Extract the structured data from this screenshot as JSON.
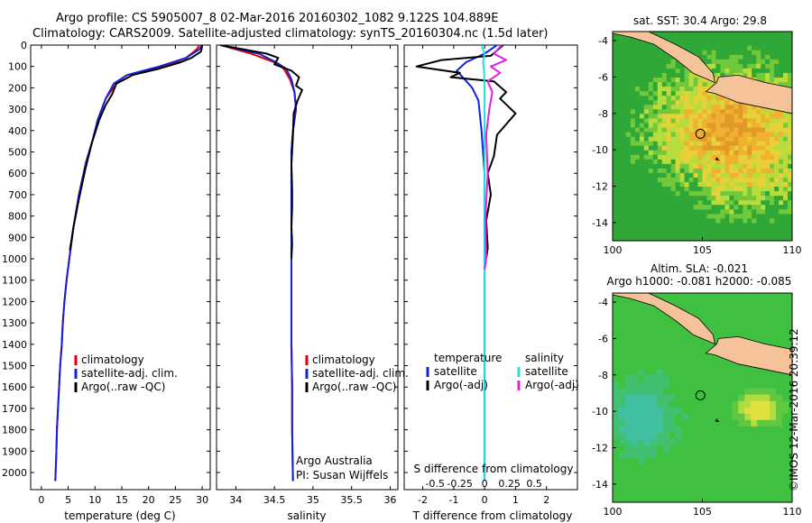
{
  "header": {
    "line1": "Argo profile: CS 5905007_8 02-Mar-2016 20160302_1082 9.122S 104.889E",
    "line2": "Climatology: CARS2009. Satellite-adjusted climatology: synTS_20160304.nc (1.5d later)"
  },
  "stamp": "©IMOS 12-Mar-2016 20:39:12",
  "colors": {
    "climatology": "#e00000",
    "satellite": "#1020e0",
    "argo": "#000000",
    "sal_satellite": "#20e0e0",
    "sal_argo": "#e020e0",
    "land": "#f6c29a"
  },
  "chart_data": [
    {
      "type": "line",
      "name": "temperature-profile",
      "xlabel": "temperature (deg C)",
      "ylabel": "",
      "xlim": [
        -2,
        31.5
      ],
      "ylim": [
        2080,
        0
      ],
      "xticks": [
        "0",
        "5",
        "10",
        "15",
        "20",
        "25",
        "30"
      ],
      "yticks": [
        "0",
        "100",
        "200",
        "300",
        "400",
        "500",
        "600",
        "700",
        "800",
        "900",
        "1000",
        "1100",
        "1200",
        "1300",
        "1400",
        "1500",
        "1600",
        "1700",
        "1800",
        "1900",
        "2000"
      ],
      "legend": [
        "climatology",
        "satellite-adj. clim.",
        "Argo(..raw -QC)"
      ],
      "series": [
        {
          "name": "climatology",
          "color": "#e00000",
          "x": [
            29.5,
            29,
            27,
            23,
            17,
            14,
            12,
            10.5,
            9.5,
            8.3,
            7,
            6,
            5.2,
            4.7,
            4.3,
            4.0,
            3.8,
            3.5,
            3.3,
            3.1,
            2.9,
            2.8,
            2.6
          ],
          "y": [
            0,
            20,
            60,
            100,
            140,
            180,
            250,
            350,
            450,
            550,
            700,
            850,
            1000,
            1100,
            1200,
            1300,
            1400,
            1500,
            1600,
            1700,
            1800,
            1900,
            2040
          ]
        },
        {
          "name": "satellite-adj. clim.",
          "color": "#1020e0",
          "x": [
            30,
            29.5,
            27,
            22,
            16,
            13.5,
            12,
            10.5,
            9.5,
            8.3,
            7,
            6,
            5.2,
            4.7,
            4.3,
            4.0,
            3.8,
            3.5,
            3.3,
            3.1,
            2.9,
            2.8,
            2.6
          ],
          "y": [
            0,
            20,
            60,
            100,
            140,
            180,
            250,
            350,
            450,
            550,
            700,
            850,
            1000,
            1100,
            1200,
            1300,
            1400,
            1500,
            1600,
            1700,
            1800,
            1900,
            2040
          ]
        },
        {
          "name": "Argo(..raw -QC)",
          "color": "#000000",
          "x": [
            30,
            29.8,
            28,
            26,
            22,
            17,
            14,
            13.2,
            12,
            10.8,
            9.4,
            8.2,
            7.0,
            6.0,
            5.3
          ],
          "y": [
            0,
            30,
            60,
            80,
            110,
            140,
            180,
            230,
            280,
            350,
            460,
            580,
            720,
            850,
            960
          ]
        }
      ]
    },
    {
      "type": "line",
      "name": "salinity-profile",
      "xlabel": "salinity",
      "xlim": [
        33.75,
        36.1
      ],
      "ylim": [
        2080,
        0
      ],
      "xticks": [
        "34",
        "34.5",
        "35",
        "35.5",
        "36"
      ],
      "legend": [
        "climatology",
        "satellite-adj. clim.",
        "Argo(..raw -QC)"
      ],
      "annotation": [
        "Argo Australia",
        "PI: Susan Wijffels"
      ],
      "series": [
        {
          "name": "climatology",
          "color": "#e00000",
          "x": [
            33.8,
            34.2,
            34.5,
            34.62,
            34.7,
            34.76,
            34.78,
            34.74,
            34.72,
            34.72,
            34.72,
            34.72,
            34.72,
            34.72,
            34.73,
            34.73,
            34.74
          ],
          "y": [
            0,
            40,
            80,
            110,
            160,
            220,
            300,
            400,
            500,
            600,
            800,
            1000,
            1200,
            1400,
            1600,
            1800,
            2040
          ]
        },
        {
          "name": "satellite-adj. clim.",
          "color": "#1020e0",
          "x": [
            33.8,
            34.3,
            34.52,
            34.65,
            34.72,
            34.76,
            34.78,
            34.74,
            34.72,
            34.72,
            34.72,
            34.72,
            34.72,
            34.72,
            34.73,
            34.73,
            34.74
          ],
          "y": [
            0,
            40,
            80,
            110,
            160,
            220,
            300,
            400,
            500,
            600,
            800,
            1000,
            1200,
            1400,
            1600,
            1800,
            2040
          ]
        },
        {
          "name": "Argo(..raw -QC)",
          "color": "#000000",
          "x": [
            33.8,
            34.4,
            34.55,
            34.5,
            34.72,
            34.82,
            34.78,
            34.86,
            34.8,
            34.75,
            34.74,
            34.72,
            34.73,
            34.73,
            34.72,
            34.73,
            34.72
          ],
          "y": [
            0,
            40,
            60,
            90,
            120,
            150,
            190,
            210,
            260,
            320,
            420,
            560,
            680,
            760,
            850,
            930,
            1000
          ]
        }
      ]
    },
    {
      "type": "line",
      "name": "difference-from-climatology",
      "xlabel": "T difference from climatology",
      "toplabel": "S difference from climatology",
      "xlim": [
        -2.6,
        3.0
      ],
      "ylim": [
        2080,
        0
      ],
      "xticks": [
        "-2",
        "-1",
        "0",
        "1",
        "2"
      ],
      "sticks": [
        "-0.5",
        "-0.25",
        "0",
        "0.25",
        "0.5"
      ],
      "legend_temperature": [
        "temperature",
        "satellite",
        "Argo(-adj)"
      ],
      "legend_salinity": [
        "salinity",
        "satellite",
        "Argo(-adj)"
      ],
      "series": [
        {
          "name": "T satellite",
          "color": "#1020e0",
          "x": [
            0.4,
            0,
            -0.6,
            -0.9,
            -0.4,
            -0.2,
            -0.15,
            -0.1,
            -0.05,
            0,
            0,
            0,
            0,
            0
          ],
          "y": [
            0,
            40,
            80,
            120,
            200,
            260,
            330,
            400,
            500,
            600,
            800,
            1000,
            1500,
            2040
          ]
        },
        {
          "name": "T Argo(-adj)",
          "color": "#000000",
          "x": [
            0.6,
            0.2,
            -1.4,
            -2.2,
            -0.8,
            -1.1,
            0.3,
            0.7,
            0.5,
            1.0,
            0.4,
            0.3,
            0.1,
            0.2,
            0.05,
            0.1,
            0.05
          ],
          "y": [
            0,
            50,
            70,
            100,
            130,
            150,
            170,
            220,
            250,
            320,
            420,
            520,
            600,
            700,
            820,
            950,
            1000
          ]
        },
        {
          "name": "S satellite",
          "color": "#20e0e0",
          "x": [
            -0.1,
            0,
            -0.05,
            -0.02,
            0,
            0,
            0,
            0,
            0,
            0
          ],
          "y": [
            0,
            40,
            80,
            120,
            200,
            400,
            700,
            1000,
            1500,
            2040
          ]
        },
        {
          "name": "S Argo(-adj)",
          "color": "#e020e0",
          "x": [
            0.55,
            0.3,
            0.7,
            0.2,
            0.5,
            0.1,
            0.25,
            0.15,
            0.05,
            0.1,
            0.03,
            0.05,
            0
          ],
          "y": [
            0,
            40,
            70,
            100,
            130,
            170,
            220,
            300,
            420,
            600,
            800,
            1000,
            1050
          ]
        }
      ]
    },
    {
      "type": "heatmap",
      "name": "satellite-sst-map",
      "title": "sat. SST: 30.4  Argo: 29.8",
      "xlim": [
        100,
        110
      ],
      "ylim": [
        -15,
        -3.5
      ],
      "xticks": [
        "100",
        "105",
        "110"
      ],
      "yticks": [
        "-4",
        "-6",
        "-8",
        "-10",
        "-12",
        "-14"
      ],
      "marker": {
        "lon": 104.889,
        "lat": -9.122
      }
    },
    {
      "type": "heatmap",
      "name": "altimetry-sla-map",
      "title": "Altim. SLA: -0.021",
      "subtitle": "Argo h1000: -0.081 h2000: -0.085",
      "xlim": [
        100,
        110
      ],
      "ylim": [
        -15,
        -3.5
      ],
      "xticks": [
        "100",
        "105",
        "110"
      ],
      "yticks": [
        "-4",
        "-6",
        "-8",
        "-10",
        "-12",
        "-14"
      ],
      "marker": {
        "lon": 104.889,
        "lat": -9.122
      }
    }
  ]
}
